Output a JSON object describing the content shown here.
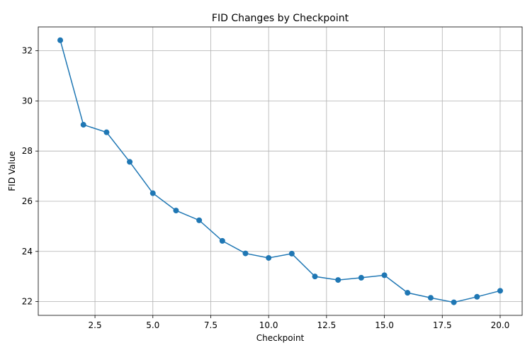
{
  "chart_data": {
    "type": "line",
    "title": "FID Changes by Checkpoint",
    "xlabel": "Checkpoint",
    "ylabel": "FID Value",
    "xlim": [
      0.05,
      20.95
    ],
    "ylim": [
      21.45,
      32.95
    ],
    "xticks": [
      2.5,
      5.0,
      7.5,
      10.0,
      12.5,
      15.0,
      17.5,
      20.0
    ],
    "xtick_labels": [
      "2.5",
      "5.0",
      "7.5",
      "10.0",
      "12.5",
      "15.0",
      "17.5",
      "20.0"
    ],
    "yticks": [
      22,
      24,
      26,
      28,
      30,
      32
    ],
    "ytick_labels": [
      "22",
      "24",
      "26",
      "28",
      "30",
      "32"
    ],
    "grid": true,
    "color": "#1f77b4",
    "series": [
      {
        "x": [
          1,
          2,
          3,
          4,
          5,
          6,
          7,
          8,
          9,
          10,
          11,
          12,
          13,
          14,
          15,
          16,
          17,
          18,
          19,
          20
        ],
        "values": [
          32.42,
          29.05,
          28.75,
          27.57,
          26.32,
          25.63,
          25.24,
          24.42,
          23.92,
          23.74,
          23.91,
          23.0,
          22.86,
          22.95,
          23.05,
          22.35,
          22.15,
          21.97,
          22.19,
          22.43
        ]
      }
    ]
  }
}
